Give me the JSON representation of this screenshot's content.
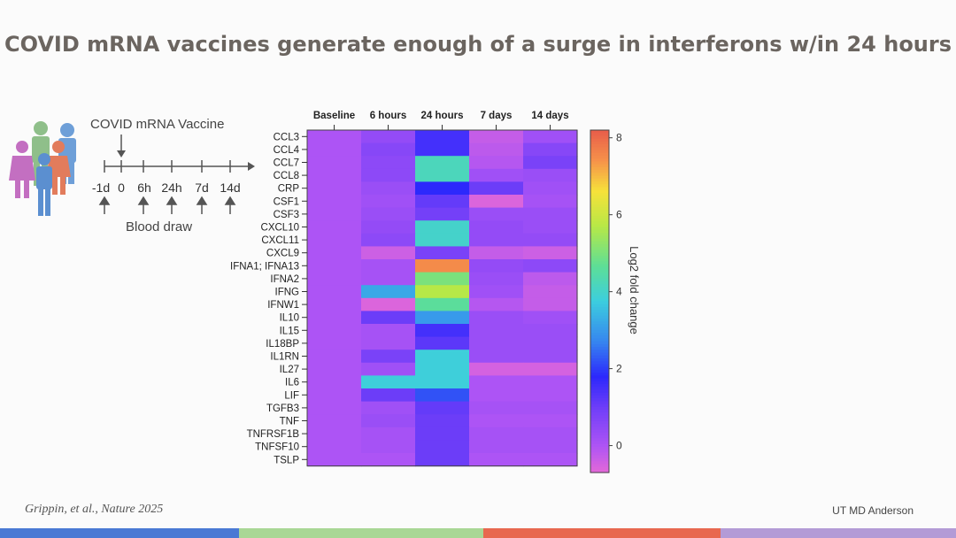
{
  "title": "COVID mRNA vaccines generate enough of a surge in interferons w/in 24 hours",
  "diagram": {
    "vaccine_label": "COVID mRNA Vaccine",
    "timepoints": [
      "-1d",
      "0",
      "6h",
      "24h",
      "7d",
      "14d"
    ],
    "blood_draw_label": "Blood draw"
  },
  "chart_data": {
    "type": "heatmap",
    "columns": [
      "Baseline",
      "6 hours",
      "24 hours",
      "7 days",
      "14 days"
    ],
    "rows": [
      "CCL3",
      "CCL4",
      "CCL7",
      "CCL8",
      "CRP",
      "CSF1",
      "CSF3",
      "CXCL10",
      "CXCL11",
      "CXCL9",
      "IFNA1; IFNA13",
      "IFNA2",
      "IFNG",
      "IFNW1",
      "IL10",
      "IL15",
      "IL18BP",
      "IL1RN",
      "IL27",
      "IL6",
      "LIF",
      "TGFB3",
      "TNF",
      "TNFRSF1B",
      "TNFSF10",
      "TSLP"
    ],
    "values": [
      [
        0,
        0.4,
        1.5,
        -0.3,
        0.2
      ],
      [
        0,
        0.6,
        1.5,
        -0.2,
        0.6
      ],
      [
        0,
        0.5,
        4.2,
        -0.1,
        0.8
      ],
      [
        0,
        0.5,
        4.2,
        0.2,
        0.3
      ],
      [
        0,
        0.3,
        1.8,
        1.0,
        0.2
      ],
      [
        0,
        0.2,
        1.1,
        -0.6,
        0.1
      ],
      [
        0,
        0.3,
        0.9,
        0.3,
        0.3
      ],
      [
        0,
        0.4,
        4.0,
        0.4,
        0.3
      ],
      [
        0,
        0.5,
        4.0,
        0.4,
        0.4
      ],
      [
        0,
        -0.4,
        0.8,
        -0.3,
        -0.4
      ],
      [
        0,
        0.1,
        7.5,
        0.4,
        0.5
      ],
      [
        0,
        0.1,
        5.0,
        0.3,
        -0.2
      ],
      [
        0,
        3.2,
        5.7,
        0.2,
        -0.3
      ],
      [
        0,
        -0.6,
        4.6,
        -0.1,
        -0.3
      ],
      [
        0,
        1.0,
        3.0,
        0.3,
        0.2
      ],
      [
        0,
        0.1,
        1.5,
        0.3,
        0.3
      ],
      [
        0,
        0.1,
        1.2,
        0.3,
        0.3
      ],
      [
        0,
        0.8,
        3.8,
        0.3,
        0.3
      ],
      [
        0,
        0.2,
        3.8,
        -0.5,
        -0.5
      ],
      [
        0,
        3.8,
        3.8,
        0.0,
        0.0
      ],
      [
        0,
        1.0,
        2.2,
        0.0,
        0.0
      ],
      [
        0,
        0.2,
        1.1,
        0.1,
        0.1
      ],
      [
        0,
        0.3,
        1.0,
        0.0,
        0.0
      ],
      [
        0,
        0.1,
        1.0,
        0.1,
        0.1
      ],
      [
        0,
        0.1,
        1.0,
        0.1,
        0.1
      ],
      [
        0,
        0.0,
        1.0,
        0.0,
        0.0
      ]
    ],
    "colorbar": {
      "label": "Log2 fold change",
      "range": [
        -0.7,
        8.2
      ],
      "ticks": [
        8,
        6,
        4,
        2,
        0
      ]
    }
  },
  "footer": {
    "citation": "Grippin, et al., Nature 2025",
    "org": "UT MD Anderson",
    "bar_colors": [
      "#4a79d4",
      "#a9d795",
      "#e8684f",
      "#b39bd6"
    ]
  }
}
